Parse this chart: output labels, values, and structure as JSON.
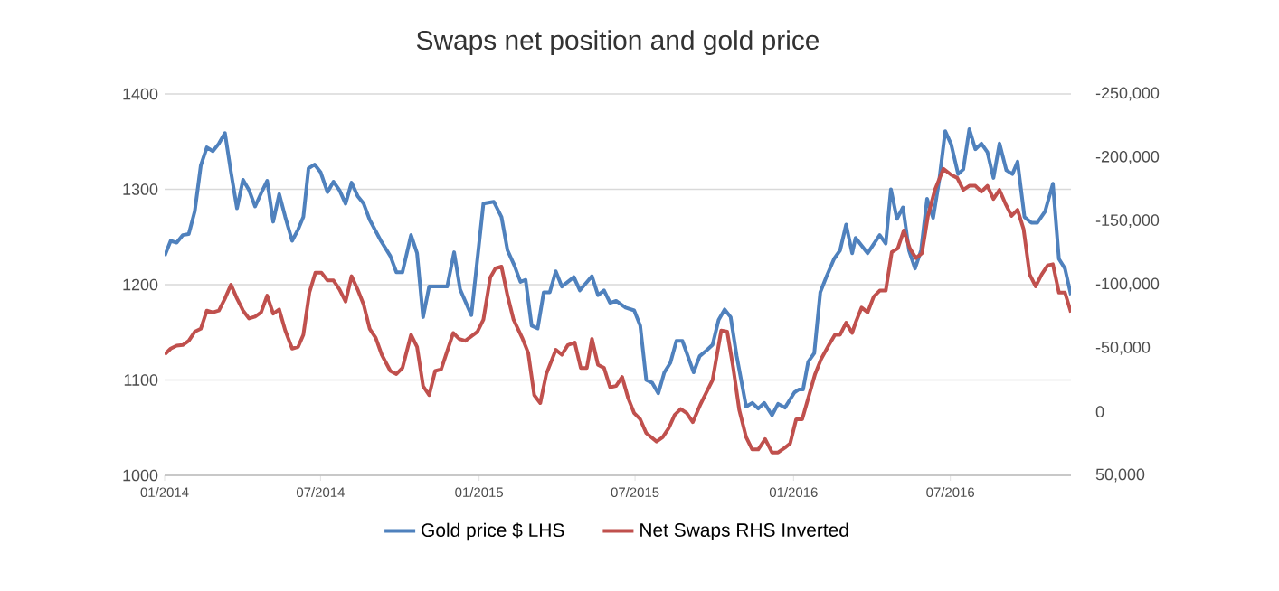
{
  "chart_data": {
    "type": "line",
    "title": "Swaps net position and gold price",
    "xlim": [
      "2014-01-01",
      "2016-11-18"
    ],
    "xticks": [
      {
        "value": "2014-01-01",
        "label": "01/2014"
      },
      {
        "value": "2014-07-01",
        "label": "07/2014"
      },
      {
        "value": "2015-01-01",
        "label": "01/2015"
      },
      {
        "value": "2015-07-01",
        "label": "07/2015"
      },
      {
        "value": "2016-01-01",
        "label": "01/2016"
      },
      {
        "value": "2016-07-01",
        "label": "07/2016"
      }
    ],
    "ylim": [
      1000,
      1400
    ],
    "yticks": [
      1000,
      1100,
      1200,
      1300,
      1400
    ],
    "y2lim": [
      50000,
      -250000
    ],
    "y2ticks": [
      {
        "value": -250000,
        "label": "-250,000"
      },
      {
        "value": -200000,
        "label": "-200,000"
      },
      {
        "value": -150000,
        "label": "-150,000"
      },
      {
        "value": -100000,
        "label": "-100,000"
      },
      {
        "value": -50000,
        "label": "-50,000"
      },
      0,
      {
        "value": 50000,
        "label": "50,000"
      }
    ],
    "grid": "y",
    "legend": "bottom",
    "series": [
      {
        "name": "Gold price $ LHS",
        "color": "#4f81bd",
        "x": [
          "2014-01-01",
          "2014-01-08",
          "2014-01-15",
          "2014-01-22",
          "2014-01-29",
          "2014-02-05",
          "2014-02-12",
          "2014-02-19",
          "2014-02-26",
          "2014-03-05",
          "2014-03-12",
          "2014-03-19",
          "2014-03-26",
          "2014-04-02",
          "2014-04-09",
          "2014-04-16",
          "2014-04-23",
          "2014-04-30",
          "2014-05-07",
          "2014-05-14",
          "2014-05-21",
          "2014-05-29",
          "2014-06-05",
          "2014-06-11",
          "2014-06-17",
          "2014-06-24",
          "2014-07-01",
          "2014-07-09",
          "2014-07-16",
          "2014-07-23",
          "2014-07-30",
          "2014-08-06",
          "2014-08-13",
          "2014-08-20",
          "2014-08-27",
          "2014-09-09",
          "2014-09-20",
          "2014-09-27",
          "2014-10-04",
          "2014-10-14",
          "2014-10-21",
          "2014-10-28",
          "2014-11-04",
          "2014-11-18",
          "2014-11-25",
          "2014-12-03",
          "2014-12-10",
          "2014-12-23",
          "2015-01-06",
          "2015-01-18",
          "2015-01-27",
          "2015-02-03",
          "2015-02-11",
          "2015-02-18",
          "2015-02-24",
          "2015-03-03",
          "2015-03-10",
          "2015-03-17",
          "2015-03-24",
          "2015-03-31",
          "2015-04-07",
          "2015-04-21",
          "2015-04-28",
          "2015-05-12",
          "2015-05-19",
          "2015-05-26",
          "2015-06-02",
          "2015-06-09",
          "2015-06-20",
          "2015-06-30",
          "2015-07-07",
          "2015-07-14",
          "2015-07-21",
          "2015-07-28",
          "2015-08-04",
          "2015-08-11",
          "2015-08-18",
          "2015-08-25",
          "2015-09-07",
          "2015-09-14",
          "2015-09-22",
          "2015-09-29",
          "2015-10-06",
          "2015-10-13",
          "2015-10-20",
          "2015-10-27",
          "2015-11-07",
          "2015-11-14",
          "2015-11-21",
          "2015-11-28",
          "2015-12-07",
          "2015-12-14",
          "2015-12-22",
          "2016-01-02",
          "2016-01-07",
          "2016-01-12",
          "2016-01-18",
          "2016-01-25",
          "2016-02-01",
          "2016-02-08",
          "2016-02-17",
          "2016-02-24",
          "2016-03-02",
          "2016-03-09",
          "2016-03-13",
          "2016-03-27",
          "2016-04-10",
          "2016-04-17",
          "2016-04-23",
          "2016-04-30",
          "2016-05-07",
          "2016-05-14",
          "2016-05-21",
          "2016-05-28",
          "2016-06-04",
          "2016-06-11",
          "2016-06-18",
          "2016-06-25",
          "2016-07-02",
          "2016-07-10",
          "2016-07-16",
          "2016-07-23",
          "2016-07-30",
          "2016-08-06",
          "2016-08-13",
          "2016-08-20",
          "2016-08-27",
          "2016-09-04",
          "2016-09-11",
          "2016-09-17",
          "2016-09-25",
          "2016-10-03",
          "2016-10-10",
          "2016-10-19",
          "2016-10-28",
          "2016-11-04",
          "2016-11-11",
          "2016-11-18"
        ],
        "values": [
          1230,
          1246,
          1244,
          1252,
          1253,
          1277,
          1325,
          1344,
          1340,
          1348,
          1359,
          1318,
          1280,
          1310,
          1299,
          1282,
          1296,
          1309,
          1266,
          1295,
          1271,
          1246,
          1258,
          1271,
          1322,
          1326,
          1318,
          1297,
          1308,
          1299,
          1285,
          1307,
          1293,
          1285,
          1268,
          1246,
          1230,
          1213,
          1213,
          1252,
          1233,
          1166,
          1198,
          1198,
          1198,
          1234,
          1195,
          1168,
          1285,
          1287,
          1271,
          1236,
          1220,
          1203,
          1205,
          1157,
          1154,
          1192,
          1192,
          1214,
          1198,
          1208,
          1194,
          1209,
          1189,
          1194,
          1181,
          1183,
          1176,
          1173,
          1157,
          1100,
          1097,
          1086,
          1108,
          1118,
          1141,
          1141,
          1108,
          1125,
          1131,
          1137,
          1163,
          1174,
          1166,
          1125,
          1072,
          1076,
          1070,
          1076,
          1063,
          1075,
          1071,
          1087,
          1090,
          1090,
          1119,
          1128,
          1192,
          1208,
          1227,
          1236,
          1263,
          1233,
          1249,
          1233,
          1252,
          1243,
          1300,
          1269,
          1281,
          1236,
          1217,
          1236,
          1290,
          1270,
          1309,
          1361,
          1347,
          1316,
          1321,
          1363,
          1342,
          1348,
          1339,
          1312,
          1348,
          1320,
          1316,
          1329,
          1271,
          1265,
          1265,
          1277,
          1306,
          1227,
          1217,
          1189
        ]
      },
      {
        "name": "Net Swaps RHS Inverted",
        "color": "#c0504d",
        "axis": "y2",
        "x": [
          "2014-01-01",
          "2014-01-08",
          "2014-01-15",
          "2014-01-22",
          "2014-01-29",
          "2014-02-05",
          "2014-02-12",
          "2014-02-19",
          "2014-02-26",
          "2014-03-05",
          "2014-03-12",
          "2014-03-19",
          "2014-03-26",
          "2014-04-02",
          "2014-04-09",
          "2014-04-16",
          "2014-04-23",
          "2014-04-30",
          "2014-05-07",
          "2014-05-14",
          "2014-05-21",
          "2014-05-29",
          "2014-06-05",
          "2014-06-11",
          "2014-06-18",
          "2014-06-25",
          "2014-07-02",
          "2014-07-09",
          "2014-07-16",
          "2014-07-23",
          "2014-07-30",
          "2014-08-06",
          "2014-08-13",
          "2014-08-20",
          "2014-08-27",
          "2014-09-03",
          "2014-09-10",
          "2014-09-20",
          "2014-09-27",
          "2014-10-04",
          "2014-10-14",
          "2014-10-21",
          "2014-10-28",
          "2014-11-04",
          "2014-11-11",
          "2014-11-18",
          "2014-12-02",
          "2014-12-09",
          "2014-12-16",
          "2014-12-30",
          "2015-01-06",
          "2015-01-14",
          "2015-01-20",
          "2015-01-27",
          "2015-02-03",
          "2015-02-10",
          "2015-02-20",
          "2015-02-27",
          "2015-03-06",
          "2015-03-13",
          "2015-03-20",
          "2015-03-31",
          "2015-04-07",
          "2015-04-14",
          "2015-04-22",
          "2015-04-29",
          "2015-05-06",
          "2015-05-12",
          "2015-05-19",
          "2015-05-26",
          "2015-06-02",
          "2015-06-09",
          "2015-06-16",
          "2015-06-23",
          "2015-06-30",
          "2015-07-07",
          "2015-07-14",
          "2015-07-26",
          "2015-08-02",
          "2015-08-09",
          "2015-08-16",
          "2015-08-23",
          "2015-08-30",
          "2015-09-06",
          "2015-09-15",
          "2015-09-22",
          "2015-09-29",
          "2015-10-09",
          "2015-10-16",
          "2015-10-23",
          "2015-10-30",
          "2015-11-07",
          "2015-11-14",
          "2015-11-21",
          "2015-11-29",
          "2015-12-07",
          "2015-12-14",
          "2015-12-22",
          "2015-12-28",
          "2016-01-04",
          "2016-01-11",
          "2016-01-18",
          "2016-01-26",
          "2016-02-02",
          "2016-02-11",
          "2016-02-18",
          "2016-02-24",
          "2016-03-02",
          "2016-03-09",
          "2016-03-13",
          "2016-03-20",
          "2016-03-27",
          "2016-04-03",
          "2016-04-10",
          "2016-04-17",
          "2016-04-24",
          "2016-05-01",
          "2016-05-08",
          "2016-05-15",
          "2016-05-22",
          "2016-05-29",
          "2016-06-05",
          "2016-06-13",
          "2016-06-23",
          "2016-07-02",
          "2016-07-09",
          "2016-07-16",
          "2016-07-23",
          "2016-07-30",
          "2016-08-06",
          "2016-08-13",
          "2016-08-20",
          "2016-08-27",
          "2016-09-03",
          "2016-09-10",
          "2016-09-17",
          "2016-09-24",
          "2016-10-01",
          "2016-10-08",
          "2016-10-15",
          "2016-10-22",
          "2016-10-28",
          "2016-11-04",
          "2016-11-11",
          "2016-11-18"
        ],
        "values": [
          -45000,
          -49700,
          -52000,
          -52500,
          -55800,
          -63000,
          -65300,
          -79600,
          -78200,
          -79600,
          -89100,
          -100000,
          -89100,
          -79600,
          -73400,
          -74800,
          -78200,
          -91400,
          -77200,
          -80500,
          -63900,
          -49700,
          -51100,
          -60600,
          -93800,
          -109500,
          -109500,
          -103300,
          -103300,
          -96200,
          -86700,
          -106700,
          -96200,
          -84300,
          -65300,
          -58200,
          -44900,
          -32100,
          -29700,
          -34500,
          -60600,
          -51100,
          -20200,
          -13100,
          -32100,
          -33500,
          -62000,
          -57300,
          -55800,
          -63000,
          -72500,
          -105700,
          -112800,
          -114200,
          -91400,
          -72500,
          -58200,
          -46400,
          -13100,
          -6900,
          -29700,
          -48700,
          -44900,
          -52500,
          -54400,
          -34500,
          -34500,
          -57300,
          -36900,
          -34500,
          -19300,
          -20300,
          -27400,
          -10700,
          1100,
          5900,
          16800,
          23400,
          20100,
          13000,
          2500,
          -2200,
          1100,
          8200,
          -6000,
          -15500,
          -25000,
          -63900,
          -63000,
          -34500,
          -1300,
          20100,
          29600,
          29600,
          21500,
          32000,
          32000,
          28200,
          24900,
          5900,
          5900,
          -10700,
          -29700,
          -41600,
          -52500,
          -60600,
          -60600,
          -70100,
          -62000,
          -70100,
          -82000,
          -78200,
          -90500,
          -95300,
          -95300,
          -125600,
          -128500,
          -142700,
          -128500,
          -120900,
          -124700,
          -154100,
          -174500,
          -191100,
          -186400,
          -184000,
          -174500,
          -177800,
          -177800,
          -173100,
          -177800,
          -167400,
          -174500,
          -163600,
          -154100,
          -158900,
          -143700,
          -108100,
          -98600,
          -108100,
          -115200,
          -116100,
          -93800,
          -93800,
          -78200
        ]
      }
    ]
  }
}
